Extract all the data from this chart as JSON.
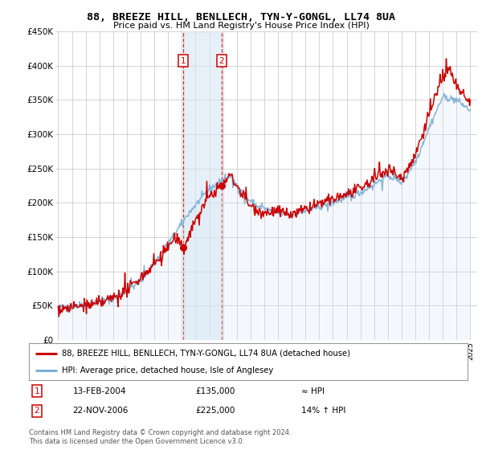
{
  "title": "88, BREEZE HILL, BENLLECH, TYN-Y-GONGL, LL74 8UA",
  "subtitle": "Price paid vs. HM Land Registry's House Price Index (HPI)",
  "legend_line1": "88, BREEZE HILL, BENLLECH, TYN-Y-GONGL, LL74 8UA (detached house)",
  "legend_line2": "HPI: Average price, detached house, Isle of Anglesey",
  "transaction1_date": "13-FEB-2004",
  "transaction1_price": "£135,000",
  "transaction1_vs_hpi": "≈ HPI",
  "transaction2_date": "22-NOV-2006",
  "transaction2_price": "£225,000",
  "transaction2_vs_hpi": "14% ↑ HPI",
  "footnote1": "Contains HM Land Registry data © Crown copyright and database right 2024.",
  "footnote2": "This data is licensed under the Open Government Licence v3.0.",
  "price_line_color": "#cc0000",
  "hpi_line_color": "#7bafd4",
  "hpi_fill_color": "#d6e6f5",
  "marker_color": "#cc0000",
  "marker1_x": 2004.12,
  "marker1_y": 135000,
  "marker2_x": 2006.9,
  "marker2_y": 225000,
  "shade_x1": 2004.12,
  "shade_x2": 2006.9,
  "ylim_min": 0,
  "ylim_max": 450000,
  "yticks": [
    0,
    50000,
    100000,
    150000,
    200000,
    250000,
    300000,
    350000,
    400000,
    450000
  ],
  "ytick_labels": [
    "£0",
    "£50K",
    "£100K",
    "£150K",
    "£200K",
    "£250K",
    "£300K",
    "£350K",
    "£400K",
    "£450K"
  ],
  "xtick_years": [
    1995,
    1996,
    1997,
    1998,
    1999,
    2000,
    2001,
    2002,
    2003,
    2004,
    2005,
    2006,
    2007,
    2008,
    2009,
    2010,
    2011,
    2012,
    2013,
    2014,
    2015,
    2016,
    2017,
    2018,
    2019,
    2020,
    2021,
    2022,
    2023,
    2024,
    2025
  ],
  "grid_color": "#cccccc",
  "bg_color": "#ffffff",
  "vline_color": "#cc0000",
  "box_color": "#cc0000",
  "xlim_min": 1994.8,
  "xlim_max": 2025.5
}
